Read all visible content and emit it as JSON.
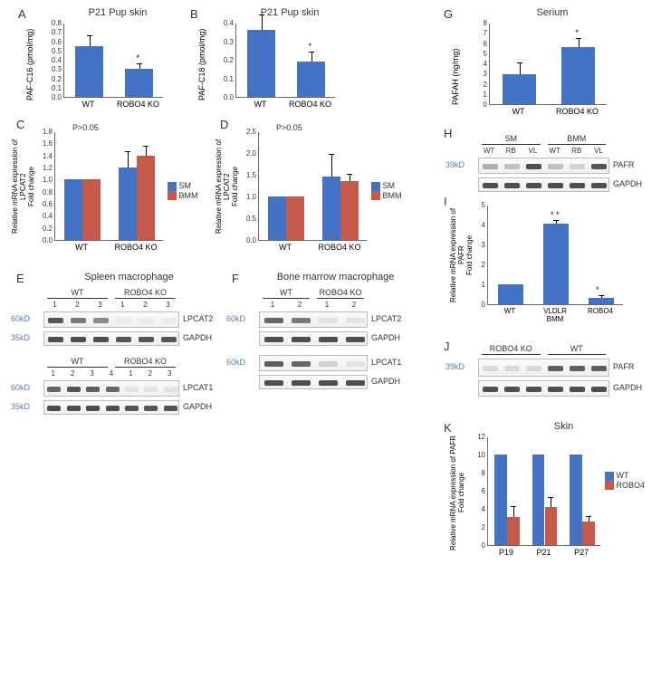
{
  "colors": {
    "blue": "#4472c4",
    "red": "#c55a4a",
    "text": "#333333",
    "axis": "#666666"
  },
  "panelA": {
    "label": "A",
    "title": "P21 Pup skin",
    "ylabel": "PAF-C16 (pmol/mg)",
    "categories": [
      "WT",
      "ROBO4 KO"
    ],
    "values": [
      0.55,
      0.3
    ],
    "errors": [
      0.1,
      0.05
    ],
    "ymax": 0.8,
    "ytick": 0.1,
    "star": "*",
    "star_on": 1
  },
  "panelB": {
    "label": "B",
    "title": "P21 Pup skin",
    "ylabel": "PAF-C18 (pmol/mg)",
    "categories": [
      "WT",
      "ROBO4 KO"
    ],
    "values": [
      0.36,
      0.19
    ],
    "errors": [
      0.08,
      0.05
    ],
    "ymax": 0.4,
    "ytick": 0.1,
    "star": "*",
    "star_on": 1
  },
  "panelC": {
    "label": "C",
    "ylabel": "Relative mRNA expression of LPCAT2\nFold change",
    "pvalue": "P>0.05",
    "categories": [
      "WT",
      "ROBO4 KO"
    ],
    "series": [
      {
        "name": "SM",
        "color": "#4472c4",
        "values": [
          1.0,
          1.2
        ],
        "errors": [
          0,
          0.25
        ]
      },
      {
        "name": "BMM",
        "color": "#c55a4a",
        "values": [
          1.0,
          1.4
        ],
        "errors": [
          0,
          0.15
        ]
      }
    ],
    "ymax": 1.8,
    "ytick": 0.2
  },
  "panelD": {
    "label": "D",
    "ylabel": "Relative mRNA expression of LPCAT2\nFold change",
    "pvalue": "P>0.05",
    "categories": [
      "WT",
      "ROBO4 KO"
    ],
    "series": [
      {
        "name": "SM",
        "color": "#4472c4",
        "values": [
          1.0,
          1.45
        ],
        "errors": [
          0,
          0.5
        ]
      },
      {
        "name": "BMM",
        "color": "#c55a4a",
        "values": [
          1.0,
          1.35
        ],
        "errors": [
          0,
          0.15
        ]
      }
    ],
    "ymax": 2.5,
    "ytick": 0.5
  },
  "panelE": {
    "label": "E",
    "title": "Spleen macrophage",
    "groups_top": [
      "WT",
      "ROBO4 KO"
    ],
    "lanes_top": [
      "1",
      "2",
      "3",
      "1",
      "2",
      "3"
    ],
    "rows_top": [
      "LPCAT2",
      "GAPDH"
    ],
    "mw_top": [
      "60kD",
      "35kD"
    ],
    "groups_bot": [
      "WT",
      "ROBO4 KO"
    ],
    "lanes_bot": [
      "1",
      "2",
      "3",
      "4",
      "1",
      "2",
      "3"
    ],
    "rows_bot": [
      "LPCAT1",
      "GAPDH"
    ],
    "mw_bot": [
      "60kD",
      "35kD"
    ]
  },
  "panelF": {
    "label": "F",
    "title": "Bone marrow macrophage",
    "groups": [
      "WT",
      "ROBO4 KO"
    ],
    "lanes": [
      "1",
      "2",
      "1",
      "2"
    ],
    "rows": [
      "LPCAT2",
      "GAPDH",
      "LPCAT1",
      "GAPDH"
    ],
    "mw": [
      "60kD",
      "",
      "60kD",
      ""
    ]
  },
  "panelG": {
    "label": "G",
    "title": "Serium",
    "ylabel": "PAFAH (ng/mg)",
    "categories": [
      "WT",
      "ROBO4 KO"
    ],
    "values": [
      2.9,
      5.6
    ],
    "errors": [
      1.1,
      0.8
    ],
    "ymax": 8,
    "ytick": 1,
    "star": "*",
    "star_on": 1
  },
  "panelH": {
    "label": "H",
    "groups": [
      "SM",
      "BMM"
    ],
    "lanes": [
      "WT",
      "RB",
      "VL",
      "WT",
      "RB",
      "VL"
    ],
    "rows": [
      "PAFR",
      "GAPDH"
    ],
    "mw": [
      "39kD",
      ""
    ]
  },
  "panelI": {
    "label": "I",
    "ylabel": "Relative mRNA expression of PAFR\nFold change",
    "categories": [
      "WT",
      "VLDLR\nBMM",
      "ROBO4"
    ],
    "values": [
      1.0,
      4.05,
      0.3
    ],
    "errors": [
      0,
      0.15,
      0.1
    ],
    "ymax": 5,
    "ytick": 1,
    "stars": {
      "1": "* *",
      "2": "*"
    }
  },
  "panelJ": {
    "label": "J",
    "groups": [
      "ROBO4 KO",
      "WT"
    ],
    "rows": [
      "PAFR",
      "GAPDH"
    ],
    "mw": [
      "39kD",
      ""
    ]
  },
  "panelK": {
    "label": "K",
    "title": "Skin",
    "ylabel": "Relative mRNA expression of PAFR\nFold change",
    "categories": [
      "P19",
      "P21",
      "P27"
    ],
    "series": [
      {
        "name": "WT",
        "color": "#4472c4",
        "values": [
          10,
          10,
          10
        ],
        "errors": [
          0,
          0,
          0
        ]
      },
      {
        "name": "ROBO4",
        "color": "#c55a4a",
        "values": [
          3.1,
          4.2,
          2.6
        ],
        "errors": [
          1.1,
          1.0,
          0.5
        ]
      }
    ],
    "ymax": 12,
    "ytick": 2
  }
}
